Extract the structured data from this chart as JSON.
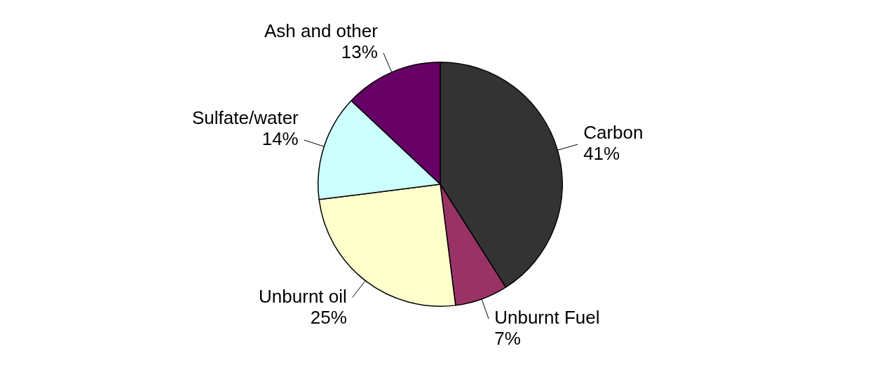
{
  "chart_data": {
    "type": "pie",
    "categories": [
      "Carbon",
      "Unburnt Fuel",
      "Unburnt oil",
      "Sulfate/water",
      "Ash and other"
    ],
    "values": [
      41,
      7,
      25,
      14,
      13
    ],
    "value_labels": [
      "41%",
      "7%",
      "25%",
      "14%",
      "13%"
    ],
    "colors": [
      "#333333",
      "#993366",
      "#ffffcc",
      "#ccffff",
      "#660066"
    ],
    "legend": false
  }
}
